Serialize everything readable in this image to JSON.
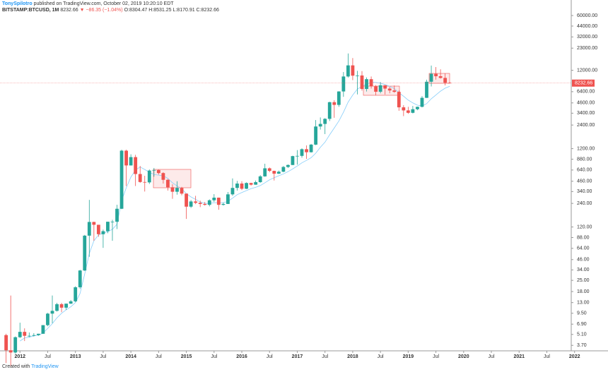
{
  "chart_data": {
    "type": "candlestick",
    "author": "TonySpilotro",
    "published": " published on TradingView.com, October 02, 2019 10:20:10 EDT",
    "symbol": "BITSTAMP:BTCUSD, 1M",
    "change": "▼ −86.35 (−1.04%)",
    "ohlc_text": "O:8304.47 H:8531.25 L:8170.91 C:8232.66",
    "footer_prefix": "Created with",
    "footer_brand": "TradingView",
    "up_color": "#26a69a",
    "down_color": "#ef5350",
    "ma_color": "#87cefa",
    "log_scale": true,
    "dates": [
      "2011-10",
      "2011-11",
      "2011-12",
      "2012-01",
      "2012-02",
      "2012-03",
      "2012-04",
      "2012-05",
      "2012-06",
      "2012-07",
      "2012-08",
      "2012-09",
      "2012-10",
      "2012-11",
      "2012-12",
      "2013-01",
      "2013-02",
      "2013-03",
      "2013-04",
      "2013-05",
      "2013-06",
      "2013-07",
      "2013-08",
      "2013-09",
      "2013-10",
      "2013-11",
      "2013-12",
      "2014-01",
      "2014-02",
      "2014-03",
      "2014-04",
      "2014-05",
      "2014-06",
      "2014-07",
      "2014-08",
      "2014-09",
      "2014-10",
      "2014-11",
      "2014-12",
      "2015-01",
      "2015-02",
      "2015-03",
      "2015-04",
      "2015-05",
      "2015-06",
      "2015-07",
      "2015-08",
      "2015-09",
      "2015-10",
      "2015-11",
      "2015-12",
      "2016-01",
      "2016-02",
      "2016-03",
      "2016-04",
      "2016-05",
      "2016-06",
      "2016-07",
      "2016-08",
      "2016-09",
      "2016-10",
      "2016-11",
      "2016-12",
      "2017-01",
      "2017-02",
      "2017-03",
      "2017-04",
      "2017-05",
      "2017-06",
      "2017-07",
      "2017-08",
      "2017-09",
      "2017-10",
      "2017-11",
      "2017-12",
      "2018-01",
      "2018-02",
      "2018-03",
      "2018-04",
      "2018-05",
      "2018-06",
      "2018-07",
      "2018-08",
      "2018-09",
      "2018-10",
      "2018-11",
      "2018-12",
      "2019-01",
      "2019-02",
      "2019-03",
      "2019-04",
      "2019-05",
      "2019-06",
      "2019-07",
      "2019-08",
      "2019-09",
      "2019-10"
    ],
    "open": [
      5.0,
      3.2,
      3.0,
      4.7,
      5.5,
      4.9,
      4.9,
      5.0,
      5.2,
      6.7,
      9.4,
      10.2,
      12.4,
      11.2,
      12.6,
      13.5,
      20.4,
      33.4,
      93,
      139,
      128,
      97,
      106,
      140,
      140,
      205,
      1130,
      732,
      935,
      569,
      450,
      445,
      630,
      640,
      585,
      480,
      385,
      338,
      378,
      320,
      218,
      254,
      244,
      236,
      230,
      263,
      284,
      230,
      236,
      313,
      378,
      430,
      369,
      437,
      416,
      448,
      531,
      673,
      624,
      575,
      609,
      700,
      742,
      963,
      970,
      1180,
      1080,
      1350,
      2300,
      2480,
      2880,
      4700,
      4340,
      6440,
      10000,
      13860,
      10250,
      10300,
      6930,
      9240,
      7500,
      6390,
      7730,
      7010,
      6630,
      6370,
      4040,
      3690,
      3440,
      3820,
      4100,
      5340,
      8570,
      10820,
      10080,
      9590,
      8304.47
    ],
    "high": [
      5.2,
      16,
      4.8,
      7.2,
      6.1,
      5.4,
      5.3,
      5.2,
      6.7,
      9.6,
      16,
      12.9,
      12.9,
      12.6,
      14,
      21,
      34,
      95,
      266,
      140,
      128,
      111,
      140,
      148,
      230,
      1163,
      1163,
      1016,
      1000,
      720,
      540,
      650,
      680,
      650,
      600,
      490,
      420,
      460,
      390,
      320,
      265,
      300,
      260,
      250,
      270,
      315,
      285,
      245,
      335,
      500,
      465,
      460,
      445,
      440,
      470,
      550,
      770,
      690,
      628,
      630,
      720,
      755,
      975,
      1150,
      1210,
      1320,
      1380,
      2780,
      3000,
      2940,
      4760,
      4980,
      6480,
      11400,
      19666,
      17200,
      11800,
      11700,
      9750,
      10000,
      7770,
      8500,
      7760,
      7410,
      7680,
      6600,
      4300,
      4100,
      4200,
      4130,
      5600,
      9100,
      13800,
      13200,
      12350,
      10940,
      8531.25
    ],
    "low": [
      2.2,
      2.0,
      2.9,
      4.6,
      4.2,
      4.7,
      4.8,
      4.9,
      5.2,
      6.5,
      7.1,
      10.0,
      9.8,
      10.5,
      12.5,
      13.2,
      19.5,
      33,
      50,
      80,
      90,
      65,
      100,
      80,
      113,
      203,
      400,
      730,
      400,
      440,
      340,
      425,
      525,
      560,
      430,
      350,
      275,
      310,
      305,
      152,
      210,
      235,
      215,
      225,
      220,
      250,
      199,
      225,
      236,
      300,
      350,
      355,
      365,
      405,
      415,
      440,
      525,
      600,
      470,
      570,
      600,
      680,
      740,
      750,
      920,
      890,
      1070,
      1330,
      2100,
      1840,
      2700,
      2970,
      4100,
      5500,
      9700,
      9000,
      5900,
      6600,
      6430,
      7000,
      5750,
      6100,
      5880,
      6100,
      6200,
      3650,
      3120,
      3340,
      3380,
      3710,
      4030,
      5320,
      7450,
      9100,
      9400,
      7700,
      8170.91
    ],
    "close": [
      3.2,
      3.0,
      4.7,
      5.5,
      4.9,
      4.9,
      5.0,
      5.2,
      6.7,
      9.4,
      10.2,
      12.4,
      11.2,
      12.6,
      13.5,
      20.4,
      33.4,
      93,
      139,
      128,
      97,
      106,
      140,
      140,
      205,
      1130,
      732,
      935,
      569,
      450,
      445,
      630,
      640,
      585,
      480,
      385,
      338,
      378,
      320,
      218,
      254,
      244,
      236,
      230,
      263,
      284,
      230,
      236,
      313,
      378,
      430,
      369,
      437,
      416,
      448,
      531,
      673,
      624,
      575,
      609,
      700,
      742,
      963,
      970,
      1180,
      1080,
      1350,
      2300,
      2480,
      2880,
      4700,
      4340,
      6440,
      10000,
      13860,
      10250,
      10300,
      6930,
      9240,
      7500,
      6390,
      7730,
      7010,
      6630,
      6370,
      4040,
      3690,
      3440,
      3820,
      4100,
      5340,
      8570,
      10820,
      10080,
      9590,
      8320,
      8232.66
    ],
    "ma_values": [
      null,
      null,
      null,
      4.2,
      4.6,
      4.7,
      4.9,
      5.0,
      5.3,
      6.1,
      7.0,
      8.3,
      9.5,
      10.5,
      11.5,
      13,
      17,
      30,
      55,
      80,
      95,
      100,
      105,
      112,
      130,
      260,
      380,
      520,
      640,
      700,
      650,
      600,
      560,
      550,
      540,
      500,
      440,
      400,
      370,
      320,
      290,
      270,
      250,
      240,
      240,
      245,
      245,
      245,
      255,
      280,
      310,
      330,
      350,
      370,
      385,
      405,
      440,
      480,
      510,
      540,
      570,
      610,
      660,
      720,
      790,
      850,
      920,
      1050,
      1250,
      1450,
      1800,
      2200,
      2700,
      3500,
      4700,
      5800,
      6900,
      7500,
      8000,
      8400,
      8400,
      8200,
      7900,
      7500,
      7000,
      6200,
      5600,
      5000,
      4600,
      4300,
      4200,
      4500,
      5200,
      5800,
      6500,
      7100,
      7500
    ],
    "xlim": [
      2011.64,
      2021.94
    ],
    "xticks": [
      2012,
      {
        "value": 2012.5,
        "label": "Jul"
      },
      2013,
      {
        "value": 2013.5,
        "label": "Jul"
      },
      2014,
      {
        "value": 2014.5,
        "label": "Jul"
      },
      2015,
      {
        "value": 2015.5,
        "label": "Jul"
      },
      2016,
      {
        "value": 2016.5,
        "label": "Jul"
      },
      2017,
      {
        "value": 2017.5,
        "label": "Jul"
      },
      2018,
      {
        "value": 2018.5,
        "label": "Jul"
      },
      2019,
      {
        "value": 2019.5,
        "label": "Jul"
      },
      2020,
      {
        "value": 2020.5,
        "label": "Jul"
      },
      2021,
      {
        "value": 2021.5,
        "label": "Jul"
      },
      2022
    ],
    "ylim": [
      3.15,
      94700
    ],
    "yticks": [
      {
        "value": 60000,
        "label": "60000.00"
      },
      {
        "value": 44000,
        "label": "44000.00"
      },
      {
        "value": 32000,
        "label": "32000.00"
      },
      {
        "value": 23000,
        "label": "23000.00"
      },
      {
        "value": 12000,
        "label": "12000.00"
      },
      {
        "value": 6400,
        "label": "6400.00"
      },
      {
        "value": 4600,
        "label": "4600.00"
      },
      {
        "value": 3400,
        "label": "3400.00"
      },
      {
        "value": 2400,
        "label": "2400.00"
      },
      {
        "value": 1200,
        "label": "1200.00"
      },
      {
        "value": 880,
        "label": "880.00"
      },
      {
        "value": 640,
        "label": "640.00"
      },
      {
        "value": 460,
        "label": "460.00"
      },
      {
        "value": 340,
        "label": "340.00"
      },
      {
        "value": 240,
        "label": "240.00"
      },
      {
        "value": 120,
        "label": "120.00"
      },
      {
        "value": 88,
        "label": "88.00"
      },
      {
        "value": 64,
        "label": "64.00"
      },
      {
        "value": 46,
        "label": "46.00"
      },
      {
        "value": 34,
        "label": "34.00"
      },
      {
        "value": 25,
        "label": "25.00"
      },
      {
        "value": 18,
        "label": "18.00"
      },
      {
        "value": 13,
        "label": "13.00"
      },
      {
        "value": 9.5,
        "label": "9.50"
      },
      {
        "value": 6.9,
        "label": "6.90"
      },
      {
        "value": 5.1,
        "label": "5.10"
      },
      {
        "value": 3.7,
        "label": "3.70"
      }
    ]
  }
}
